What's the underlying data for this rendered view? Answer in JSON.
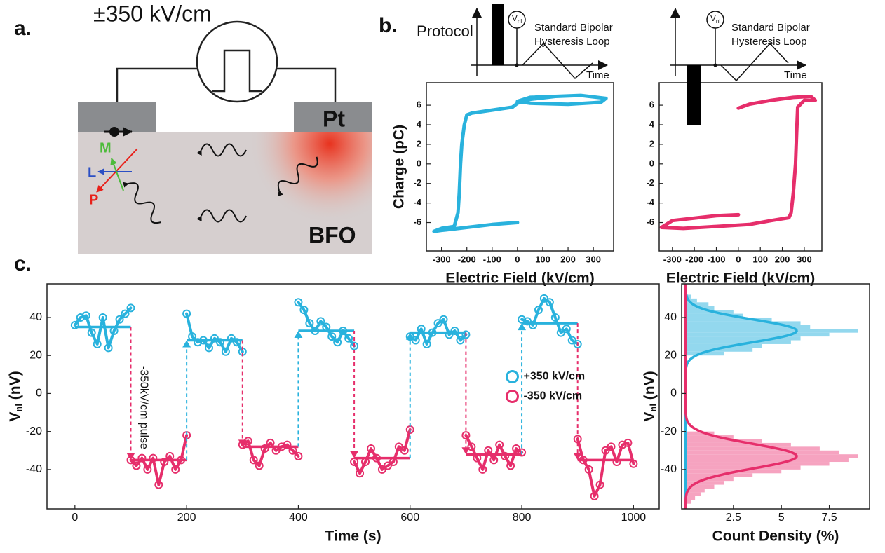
{
  "figure": {
    "panels": [
      "a.",
      "b.",
      "c."
    ],
    "schematic": {
      "field": "±350 kV/cm",
      "electrode": "Pt",
      "film": "BFO",
      "vectors": [
        "M",
        "L",
        "P"
      ]
    },
    "protocol": {
      "title": "Protocol",
      "probe": [
        "V",
        "nl"
      ],
      "loop": [
        "Standard Bipolar",
        "Hysteresis Loop"
      ],
      "axis": "Time"
    }
  },
  "chart_data": [
    {
      "type": "line",
      "xlabel": "Electric Field (kV/cm)",
      "ylabel": "Charge (pC)",
      "xlim": [
        -360,
        380
      ],
      "ylim": [
        -8.9,
        8.3
      ],
      "xticks": [
        -300,
        -200,
        -100,
        0,
        100,
        200,
        300
      ],
      "yticks": [
        -6,
        -4,
        -2,
        0,
        2,
        4,
        6
      ],
      "x": [
        0,
        -100,
        -200,
        -300,
        -330,
        -300,
        -250,
        -235,
        -230,
        -225,
        -220,
        -210,
        -200,
        -180,
        -100,
        -20,
        0,
        50,
        150,
        250,
        350,
        330,
        200,
        50,
        0,
        50,
        150
      ],
      "values": [
        -6,
        -6.2,
        -6.5,
        -6.8,
        -6.9,
        -6.6,
        -6.4,
        -5,
        -3,
        0,
        2,
        4,
        5,
        5.2,
        5.5,
        5.8,
        6.2,
        6.6,
        6.9,
        7,
        6.7,
        6.3,
        6.1,
        6.2,
        6.4,
        6.8,
        6.9
      ],
      "color": "#29b2dd"
    },
    {
      "type": "line",
      "xlabel": "Electric Field (kV/cm)",
      "xlim": [
        -360,
        380
      ],
      "ylim": [
        -8.9,
        8.3
      ],
      "xticks": [
        -300,
        -200,
        -100,
        0,
        100,
        200,
        300
      ],
      "yticks": [
        -6,
        -4,
        -2,
        0,
        2,
        4,
        6
      ],
      "x": [
        0,
        50,
        150,
        250,
        330,
        350,
        300,
        270,
        265,
        260,
        250,
        240,
        230,
        150,
        50,
        -100,
        -250,
        -350,
        -300,
        -100,
        0
      ],
      "values": [
        5.7,
        6.1,
        6.5,
        6.8,
        6.9,
        6.5,
        6.5,
        5.8,
        3,
        0,
        -3,
        -5,
        -5.5,
        -5.8,
        -6.2,
        -6.4,
        -6.6,
        -6.5,
        -5.8,
        -5.3,
        -5.2
      ],
      "color": "#e62e6b"
    },
    {
      "type": "line",
      "xlabel": "Time (s)",
      "ylabel": [
        "V",
        "nl",
        " (nV)"
      ],
      "xlim": [
        -50,
        1046
      ],
      "ylim": [
        -60.7,
        57.7
      ],
      "xticks": [
        0,
        200,
        400,
        600,
        800,
        1000
      ],
      "yticks": [
        -40,
        -20,
        0,
        20,
        40
      ],
      "annotation": "-350kV/cm pulse",
      "legend": "center-right",
      "x": [
        0,
        10,
        20,
        30,
        40,
        50,
        60,
        70,
        80,
        90,
        100,
        110,
        120,
        130,
        140,
        150,
        160,
        170,
        180,
        190,
        200,
        210,
        220,
        230,
        240,
        250,
        260,
        270,
        280,
        290,
        300,
        310,
        320,
        330,
        340,
        350,
        360,
        370,
        380,
        390,
        400,
        410,
        420,
        430,
        440,
        450,
        460,
        470,
        480,
        490,
        500,
        510,
        520,
        530,
        540,
        550,
        560,
        570,
        580,
        590,
        600,
        610,
        620,
        630,
        640,
        650,
        660,
        670,
        680,
        690,
        700,
        710,
        720,
        730,
        740,
        750,
        760,
        770,
        780,
        790,
        800,
        810,
        820,
        830,
        840,
        850,
        860,
        870,
        880,
        890,
        900,
        910,
        920,
        930,
        940,
        950,
        960,
        970,
        980,
        990,
        1000
      ],
      "series": [
        {
          "name": "+350 kV/cm",
          "color": "#29b2dd",
          "values": [
            36,
            40,
            41,
            32,
            26,
            40,
            24,
            33,
            39,
            42,
            45,
            null,
            null,
            null,
            null,
            null,
            null,
            null,
            null,
            null,
            42,
            30,
            27,
            28,
            24,
            29,
            27,
            22,
            29,
            27,
            22,
            null,
            null,
            null,
            null,
            null,
            null,
            null,
            null,
            null,
            48,
            44,
            37,
            33,
            38,
            35,
            30,
            27,
            33,
            29,
            25,
            null,
            null,
            null,
            null,
            null,
            null,
            null,
            null,
            null,
            30,
            28,
            34,
            26,
            32,
            37,
            39,
            31,
            33,
            28,
            31,
            null,
            null,
            null,
            null,
            null,
            null,
            null,
            null,
            null,
            39,
            38,
            36,
            44,
            50,
            48,
            40,
            32,
            34,
            28,
            26,
            null,
            null,
            null,
            null,
            null,
            null,
            null,
            null,
            null,
            null
          ],
          "fit_values": [
            35,
            28,
            33,
            32,
            37
          ],
          "fit_segments": [
            [
              0,
              100
            ],
            [
              200,
              300
            ],
            [
              400,
              500
            ],
            [
              600,
              700
            ],
            [
              800,
              900
            ]
          ]
        },
        {
          "name": "-350 kV/cm",
          "color": "#e62e6b",
          "values": [
            null,
            null,
            null,
            null,
            null,
            null,
            null,
            null,
            null,
            null,
            -35,
            -38,
            -34,
            -40,
            -34,
            -48,
            -36,
            -33,
            -40,
            -35,
            -22,
            null,
            null,
            null,
            null,
            null,
            null,
            null,
            null,
            null,
            -27,
            -25,
            -35,
            -38,
            -29,
            -26,
            -30,
            -28,
            -27,
            -30,
            -33,
            null,
            null,
            null,
            null,
            null,
            null,
            null,
            null,
            null,
            -36,
            -42,
            -36,
            -29,
            -34,
            -40,
            -38,
            -36,
            -28,
            -30,
            -19,
            null,
            null,
            null,
            null,
            null,
            null,
            null,
            null,
            null,
            -22,
            -28,
            -34,
            -40,
            -30,
            -35,
            -27,
            -33,
            -38,
            -29,
            -31,
            null,
            null,
            null,
            null,
            null,
            null,
            null,
            null,
            null,
            -24,
            -35,
            -40,
            -54,
            -48,
            -30,
            -28,
            -36,
            -27,
            -26,
            -37
          ],
          "fit_values": [
            -35,
            -28,
            -34,
            -32,
            -35
          ],
          "fit_segments": [
            [
              100,
              200
            ],
            [
              300,
              400
            ],
            [
              500,
              600
            ],
            [
              700,
              800
            ],
            [
              900,
              1000
            ]
          ]
        }
      ]
    },
    {
      "type": "histogram",
      "orientation": "horizontal",
      "xlabel": "Count Density (%)",
      "ylabel": [
        "V",
        "nl",
        " (nV)"
      ],
      "xlim": [
        -0.2,
        9.6
      ],
      "ylim": [
        -60.7,
        57.7
      ],
      "xticks": [
        2.5,
        5,
        7.5
      ],
      "yticks": [
        -40,
        -20,
        0,
        20,
        40
      ],
      "series": [
        {
          "color": "#93d8ee",
          "fit_color": "#29b2dd",
          "bins": [
            20,
            22,
            24,
            26,
            28,
            30,
            32,
            34,
            36,
            38,
            40,
            42,
            44,
            46,
            48,
            50,
            52
          ],
          "values": [
            2.0,
            3.5,
            4.0,
            5.5,
            6.0,
            7.5,
            9.0,
            6.5,
            6.0,
            4.5,
            3.0,
            2.5,
            1.5,
            1.2,
            0.6,
            0.3
          ],
          "fit": {
            "peak": 5.8,
            "mean": 33,
            "sd": 6
          }
        },
        {
          "color": "#f6a3c0",
          "fit_color": "#e62e6b",
          "bins": [
            -58,
            -56,
            -54,
            -52,
            -50,
            -48,
            -46,
            -44,
            -42,
            -40,
            -38,
            -36,
            -34,
            -32,
            -30,
            -28,
            -26,
            -24,
            -22,
            -20
          ],
          "values": [
            0.3,
            0.5,
            0.8,
            1.0,
            1.5,
            2.0,
            2.5,
            3.5,
            5.0,
            6.0,
            7.5,
            8.5,
            9.0,
            8.0,
            7.0,
            5.5,
            4.0,
            2.5,
            1.5
          ],
          "fit": {
            "peak": 5.8,
            "mean": -33,
            "sd": 6.5
          }
        }
      ]
    }
  ]
}
